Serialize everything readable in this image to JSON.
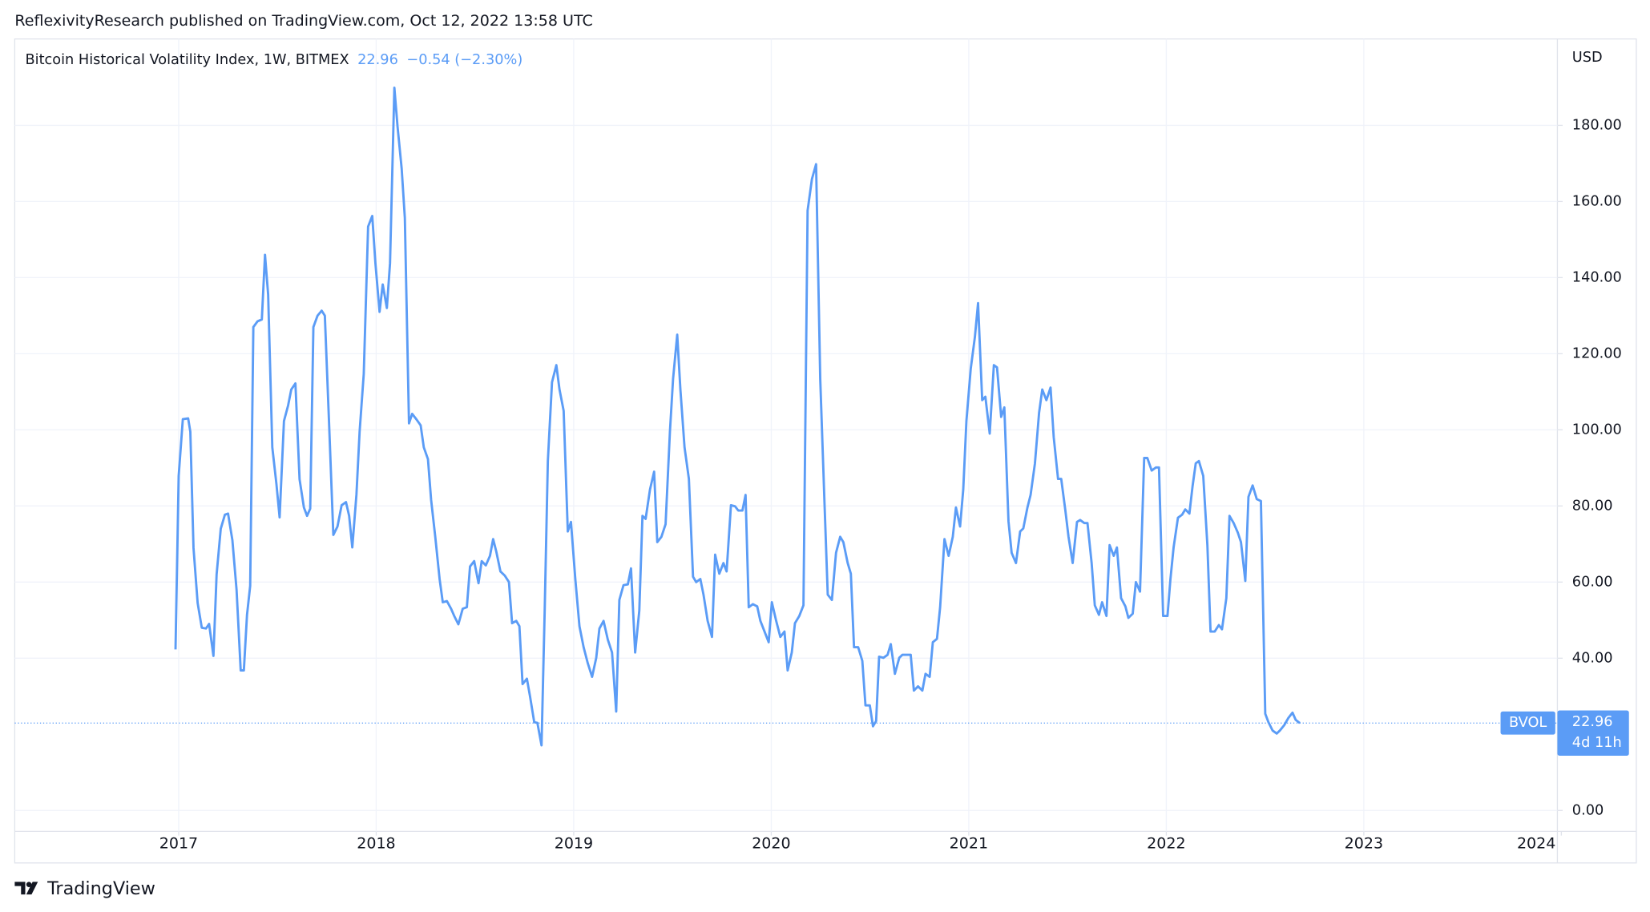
{
  "chart_data": {
    "type": "line",
    "publisher_line": "ReflexivityResearch published on TradingView.com, Oct 12, 2022 13:58 UTC",
    "last_value": 22.96,
    "change_label": "−0.54 (−2.30%)",
    "currency": "USD",
    "symbol": "BVOL",
    "countdown": "4d 11h",
    "branding": "TradingView",
    "x": [
      2016.984,
      2017.0,
      2017.021,
      2017.048,
      2017.059,
      2017.075,
      2017.096,
      2017.117,
      2017.138,
      2017.154,
      2017.176,
      2017.192,
      2017.213,
      2017.234,
      2017.25,
      2017.272,
      2017.293,
      2017.314,
      2017.33,
      2017.346,
      2017.362,
      2017.378,
      2017.399,
      2017.421,
      2017.437,
      2017.453,
      2017.474,
      2017.495,
      2017.511,
      2017.533,
      2017.554,
      2017.57,
      2017.591,
      2017.612,
      2017.634,
      2017.65,
      2017.666,
      2017.682,
      2017.703,
      2017.724,
      2017.74,
      2017.761,
      2017.783,
      2017.804,
      2017.825,
      2017.847,
      2017.863,
      2017.879,
      2017.9,
      2017.916,
      2017.937,
      2017.959,
      2017.98,
      2017.996,
      2018.017,
      2018.033,
      2018.054,
      2018.07,
      2018.092,
      2018.108,
      2018.129,
      2018.145,
      2018.166,
      2018.182,
      2018.203,
      2018.225,
      2018.241,
      2018.262,
      2018.278,
      2018.299,
      2018.321,
      2018.337,
      2018.358,
      2018.379,
      2018.395,
      2018.416,
      2018.438,
      2018.459,
      2018.475,
      2018.496,
      2018.518,
      2018.534,
      2018.555,
      2018.576,
      2018.592,
      2018.608,
      2018.629,
      2018.651,
      2018.672,
      2018.688,
      2018.709,
      2018.725,
      2018.741,
      2018.763,
      2018.779,
      2018.8,
      2018.816,
      2018.837,
      2018.853,
      2018.869,
      2018.89,
      2018.912,
      2018.928,
      2018.949,
      2018.97,
      2018.986,
      2019.008,
      2019.029,
      2019.05,
      2019.071,
      2019.093,
      2019.114,
      2019.13,
      2019.151,
      2019.173,
      2019.194,
      2019.215,
      2019.231,
      2019.252,
      2019.274,
      2019.29,
      2019.311,
      2019.332,
      2019.348,
      2019.364,
      2019.386,
      2019.407,
      2019.423,
      2019.444,
      2019.465,
      2019.487,
      2019.503,
      2019.524,
      2019.54,
      2019.561,
      2019.583,
      2019.604,
      2019.62,
      2019.641,
      2019.657,
      2019.678,
      2019.7,
      2019.716,
      2019.737,
      2019.758,
      2019.774,
      2019.796,
      2019.817,
      2019.833,
      2019.854,
      2019.87,
      2019.886,
      2019.907,
      2019.929,
      2019.945,
      2019.966,
      2019.987,
      2020.003,
      2020.025,
      2020.046,
      2020.067,
      2020.083,
      2020.104,
      2020.12,
      2020.142,
      2020.163,
      2020.184,
      2020.206,
      2020.227,
      2020.248,
      2020.27,
      2020.286,
      2020.307,
      2020.328,
      2020.349,
      2020.365,
      2020.387,
      2020.403,
      2020.419,
      2020.44,
      2020.461,
      2020.477,
      2020.499,
      2020.515,
      2020.531,
      2020.546,
      2020.568,
      2020.589,
      2020.605,
      2020.626,
      2020.648,
      2020.664,
      2020.685,
      2020.706,
      2020.722,
      2020.743,
      2020.765,
      2020.781,
      2020.802,
      2020.818,
      2020.839,
      2020.855,
      2020.877,
      2020.898,
      2020.919,
      2020.935,
      2020.956,
      2020.972,
      2020.988,
      2021.01,
      2021.031,
      2021.047,
      2021.068,
      2021.084,
      2021.106,
      2021.127,
      2021.143,
      2021.164,
      2021.18,
      2021.201,
      2021.217,
      2021.239,
      2021.26,
      2021.276,
      2021.297,
      2021.313,
      2021.335,
      2021.356,
      2021.372,
      2021.393,
      2021.414,
      2021.43,
      2021.452,
      2021.468,
      2021.489,
      2021.505,
      2021.526,
      2021.548,
      2021.564,
      2021.585,
      2021.601,
      2021.622,
      2021.638,
      2021.659,
      2021.675,
      2021.697,
      2021.713,
      2021.734,
      2021.75,
      2021.771,
      2021.793,
      2021.808,
      2021.83,
      2021.846,
      2021.867,
      2021.888,
      2021.904,
      2021.926,
      2021.947,
      2021.963,
      2021.984,
      2022.006,
      2022.021,
      2022.037,
      2022.059,
      2022.08,
      2022.096,
      2022.117,
      2022.133,
      2022.149,
      2022.165,
      2022.187,
      2022.208,
      2022.224,
      2022.245,
      2022.266,
      2022.282,
      2022.304,
      2022.32,
      2022.341,
      2022.362,
      2022.378,
      2022.4,
      2022.416,
      2022.437,
      2022.458,
      2022.479,
      2022.501,
      2022.517,
      2022.538,
      2022.559,
      2022.575,
      2022.597,
      2022.618,
      2022.639,
      2022.655,
      2022.676
    ],
    "series": [
      {
        "name": "Bitcoin Historical Volatility Index, 1W, BITMEX",
        "color": "#5b9cf6",
        "values": [
          42.3,
          87.9,
          102.8,
          103,
          99.5,
          69,
          54.5,
          48,
          47.8,
          49,
          40.6,
          62,
          74,
          77.7,
          78,
          71,
          58,
          36.8,
          36.8,
          51.4,
          59,
          127,
          128.5,
          129,
          146,
          135.5,
          95.4,
          85.7,
          77,
          102.3,
          106.4,
          110.6,
          112.2,
          87,
          79.6,
          77.4,
          79.3,
          127,
          130,
          131.3,
          130,
          102.3,
          72.4,
          74.6,
          80.2,
          81,
          77.4,
          69.1,
          83,
          99.5,
          114.7,
          153.4,
          156.2,
          143.8,
          131,
          138.2,
          132,
          143.8,
          189.9,
          179.7,
          168.6,
          155.7,
          101.7,
          104.2,
          102.8,
          101.2,
          95.4,
          92.3,
          81.6,
          71.9,
          60.8,
          54.7,
          55,
          53,
          51.1,
          48.9,
          53,
          53.4,
          64.1,
          65.5,
          59.7,
          65.5,
          64.4,
          66.9,
          71.3,
          68,
          62.8,
          61.7,
          60,
          49.2,
          49.8,
          48.4,
          33.2,
          34.6,
          29.9,
          23.2,
          23,
          17.1,
          52.5,
          91.8,
          112.5,
          117,
          110.6,
          105,
          73.3,
          75.8,
          60.8,
          48.4,
          42.9,
          38.7,
          35.1,
          40.1,
          47.8,
          49.8,
          44.8,
          41.5,
          26,
          55.3,
          59.2,
          59.4,
          63.6,
          41.5,
          52.5,
          77.4,
          76.6,
          84.3,
          89,
          70.5,
          71.9,
          75.2,
          99.5,
          113.4,
          125,
          110.6,
          95.4,
          87.1,
          61.4,
          60,
          60.8,
          56.7,
          49.8,
          45.6,
          67.2,
          62.2,
          65,
          62.8,
          80.2,
          79.9,
          78.8,
          78.8,
          82.9,
          53.4,
          54.2,
          53.6,
          49.8,
          47,
          44.2,
          54.7,
          49.8,
          45.6,
          47,
          36.8,
          41.5,
          49.2,
          51.1,
          53.9,
          157.6,
          165.9,
          169.8,
          113.4,
          80.2,
          56.7,
          55.3,
          67.7,
          71.9,
          70.5,
          65,
          62.2,
          42.9,
          42.9,
          39.3,
          27.6,
          27.6,
          22.1,
          23.5,
          40.4,
          40.1,
          40.9,
          43.7,
          35.9,
          40.1,
          40.9,
          40.9,
          40.9,
          31.5,
          32.6,
          31.5,
          35.9,
          35.1,
          44.2,
          45.1,
          53.4,
          71.3,
          66.9,
          71.9,
          79.6,
          74.6,
          84.3,
          102.3,
          116.1,
          124.4,
          133.3,
          107.8,
          108.7,
          99,
          117,
          116.4,
          103.4,
          105.9,
          76,
          67.7,
          65,
          73.3,
          74.1,
          79.6,
          82.9,
          91.2,
          104.5,
          110.6,
          107.8,
          111.1,
          98.1,
          87.1,
          87.1,
          78.8,
          71.9,
          65,
          75.8,
          76.3,
          75.5,
          75.5,
          65,
          53.9,
          51.4,
          54.7,
          51.1,
          69.7,
          66.9,
          69.1,
          55.8,
          53.6,
          50.6,
          51.7,
          60,
          57.5,
          92.6,
          92.6,
          89.3,
          90.1,
          90.1,
          51.1,
          51.1,
          60.8,
          69.1,
          76.9,
          77.7,
          79.1,
          78,
          85.2,
          91.2,
          91.8,
          87.9,
          69.7,
          47,
          47,
          48.7,
          47.6,
          55.8,
          77.4,
          75.5,
          73,
          70.5,
          60.3,
          82.4,
          85.4,
          81.8,
          81.3,
          25.4,
          23.2,
          21,
          20.2,
          21,
          22.4,
          24.3,
          25.7,
          23.8,
          22.96
        ]
      }
    ],
    "xlim": [
      2016.17,
      2023.98
    ],
    "xticks": [
      2017,
      2018,
      2019,
      2020,
      2021,
      2022,
      2023,
      2024
    ],
    "ylim": [
      -5.5,
      202.7
    ],
    "yticks": [
      {
        "value": 0,
        "label": "0.00"
      },
      {
        "value": 40,
        "label": "40.00"
      },
      {
        "value": 60,
        "label": "60.00"
      },
      {
        "value": 80,
        "label": "80.00"
      },
      {
        "value": 100,
        "label": "100.00"
      },
      {
        "value": 120,
        "label": "120.00"
      },
      {
        "value": 140,
        "label": "140.00"
      },
      {
        "value": 160,
        "label": "160.00"
      },
      {
        "value": 180,
        "label": "180.00"
      }
    ],
    "grid": true
  }
}
